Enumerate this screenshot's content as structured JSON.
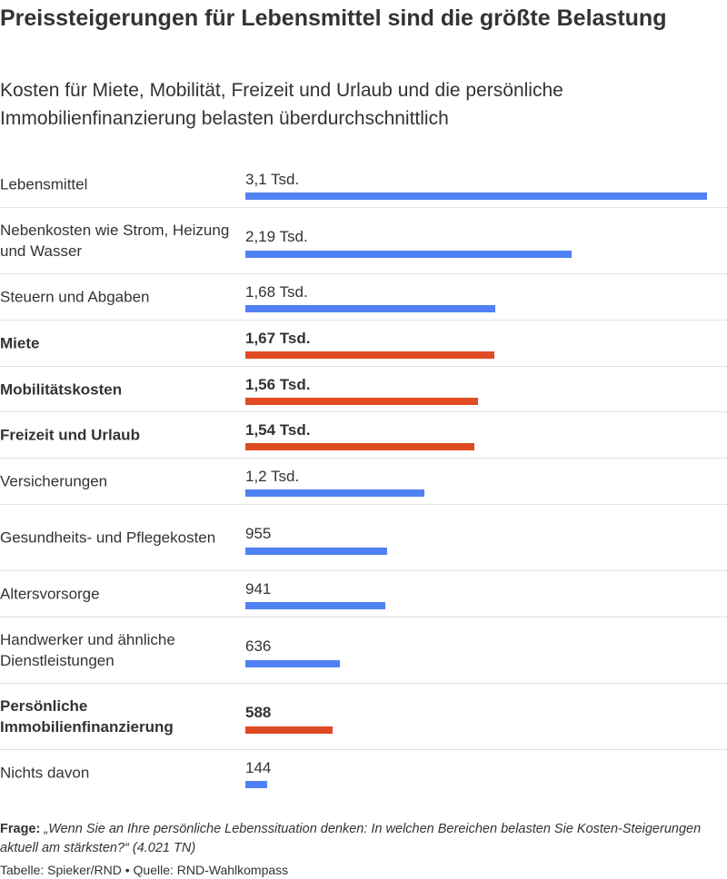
{
  "chart_data": {
    "type": "bar",
    "orientation": "horizontal",
    "title": "Preissteigerungen für Lebensmittel sind die größte Belastung",
    "subtitle": "Kosten für Miete, Mobilität, Freizeit und Urlaub und die persönliche Immobilienfinanzierung belasten überdurchschnittlich",
    "xlim": [
      0,
      3100
    ],
    "colors": {
      "default": "#5081f2",
      "highlight": "#e04b23"
    },
    "rows": [
      {
        "label": "Lebensmittel",
        "value": 3100,
        "display": "3,1 Tsd.",
        "highlight": false
      },
      {
        "label": "Nebenkosten wie Strom, Heizung und Wasser",
        "value": 2190,
        "display": "2,19 Tsd.",
        "highlight": false
      },
      {
        "label": "Steuern und Abgaben",
        "value": 1680,
        "display": "1,68 Tsd.",
        "highlight": false
      },
      {
        "label": "Miete",
        "value": 1670,
        "display": "1,67 Tsd.",
        "highlight": true
      },
      {
        "label": "Mobilitätskosten",
        "value": 1560,
        "display": "1,56 Tsd.",
        "highlight": true
      },
      {
        "label": "Freizeit und Urlaub",
        "value": 1540,
        "display": "1,54 Tsd.",
        "highlight": true
      },
      {
        "label": "Versicherungen",
        "value": 1200,
        "display": "1,2 Tsd.",
        "highlight": false
      },
      {
        "label": "Gesundheits- und Pflegekosten",
        "value": 955,
        "display": "955",
        "highlight": false
      },
      {
        "label": "Altersvorsorge",
        "value": 941,
        "display": "941",
        "highlight": false
      },
      {
        "label": "Handwerker und ähnliche Dienstleistungen",
        "value": 636,
        "display": "636",
        "highlight": false
      },
      {
        "label": "Persönliche Immobilienfinanzierung",
        "value": 588,
        "display": "588",
        "highlight": true
      },
      {
        "label": "Nichts davon",
        "value": 144,
        "display": "144",
        "highlight": false
      }
    ]
  },
  "footer": {
    "question_label": "Frage:",
    "question_text": "„Wenn Sie an Ihre persönliche Lebenssituation denken: In welchen Bereichen belasten Sie Kosten-Steigerungen aktuell am stärksten?“ (4.021 TN)",
    "credit": "Tabelle: Spieker/RND • Quelle: RND-Wahlkompass"
  }
}
